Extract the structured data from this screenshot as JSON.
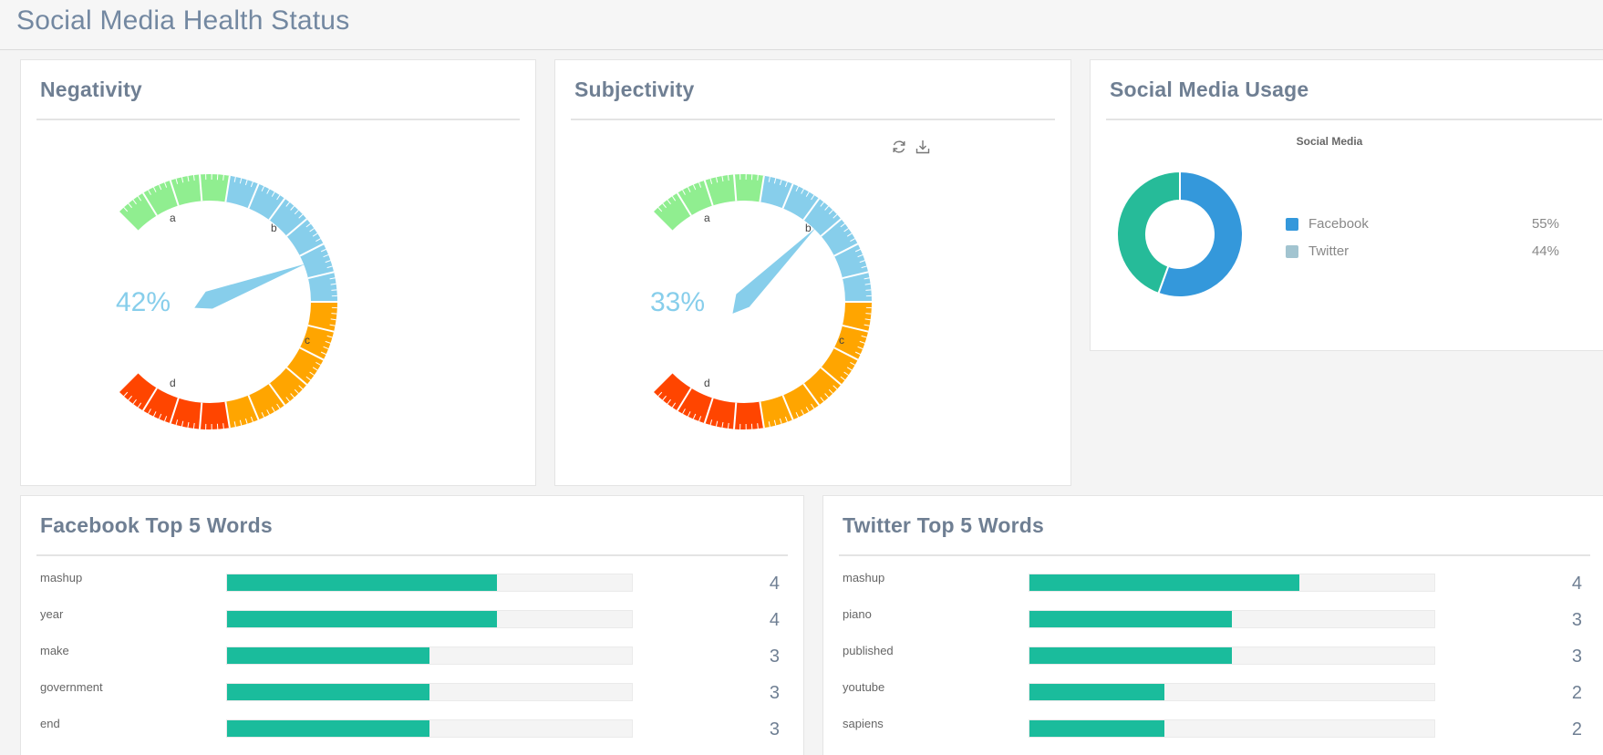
{
  "page": {
    "title": "Social Media Health Status"
  },
  "colors": {
    "green": "#90ee90",
    "blue": "#87ceeb",
    "orange": "#ffa500",
    "red": "#ff4500",
    "needle": "#87ceeb",
    "bar": "#1abc9c",
    "facebook": "#3498db",
    "twitter": "#a2c4d0",
    "twitter_slice": "#26bb99"
  },
  "gauges": [
    {
      "title": "Negativity",
      "value": 42,
      "value_label": "42%",
      "band_labels": [
        "a",
        "b",
        "c",
        "d"
      ]
    },
    {
      "title": "Subjectivity",
      "value": 33,
      "value_label": "33%",
      "band_labels": [
        "a",
        "b",
        "c",
        "d"
      ]
    }
  ],
  "toolbar": {
    "refresh_icon": "refresh-icon",
    "download_icon": "download-icon"
  },
  "usage": {
    "title": "Social Media Usage",
    "chart_title": "Social Media",
    "slices": [
      {
        "label": "Facebook",
        "percent_label": "55%",
        "value": 55
      },
      {
        "label": "Twitter",
        "percent_label": "44%",
        "value": 44
      }
    ]
  },
  "facebook_words": {
    "title": "Facebook Top 5 Words",
    "max": 6,
    "items": [
      {
        "word": "mashup",
        "count": 4
      },
      {
        "word": "year",
        "count": 4
      },
      {
        "word": "make",
        "count": 3
      },
      {
        "word": "government",
        "count": 3
      },
      {
        "word": "end",
        "count": 3
      }
    ]
  },
  "twitter_words": {
    "title": "Twitter Top 5 Words",
    "max": 6,
    "items": [
      {
        "word": "mashup",
        "count": 4
      },
      {
        "word": "piano",
        "count": 3
      },
      {
        "word": "published",
        "count": 3
      },
      {
        "word": "youtube",
        "count": 2
      },
      {
        "word": "sapiens",
        "count": 2
      }
    ]
  }
}
